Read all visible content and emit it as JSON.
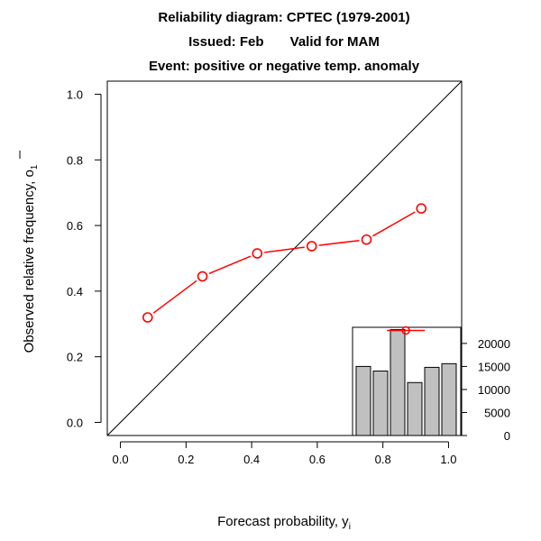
{
  "chart_data": {
    "type": "line",
    "title_lines": [
      "Reliability diagram: CPTEC (1979-2001)",
      "Issued: Feb       Valid for MAM",
      "Event: positive or negative temp. anomaly"
    ],
    "xlabel": "Forecast probability, y",
    "xlabel_sub": "i",
    "ylabel": "Observed relative frequency, o",
    "ylabel_sub": "1",
    "xlim": [
      -0.04,
      1.04
    ],
    "ylim": [
      -0.04,
      1.04
    ],
    "x_ticks": [
      "0.0",
      "0.2",
      "0.4",
      "0.6",
      "0.8",
      "1.0"
    ],
    "y_ticks": [
      "0.0",
      "0.2",
      "0.4",
      "0.6",
      "0.8",
      "1.0"
    ],
    "diagonal": [
      [
        -0.04,
        -0.04
      ],
      [
        1.04,
        1.04
      ]
    ],
    "series": [
      {
        "name": "reliability",
        "color": "#ff0000",
        "x": [
          0.083,
          0.25,
          0.417,
          0.583,
          0.75,
          0.917
        ],
        "y": [
          0.32,
          0.445,
          0.515,
          0.537,
          0.557,
          0.652
        ]
      }
    ],
    "climatology_marker": {
      "x": 0.87,
      "y": 0.28,
      "color": "#ff0000"
    },
    "inset_histogram": {
      "type": "bar",
      "categories": [
        "0.083",
        "0.25",
        "0.417",
        "0.583",
        "0.75",
        "0.917"
      ],
      "values": [
        15000,
        14000,
        23000,
        11500,
        14800,
        15600
      ],
      "ylim": [
        0,
        23500
      ],
      "y_ticks": [
        "0",
        "5000",
        "10000",
        "15000",
        "20000"
      ],
      "bar_color": "#c0c0c0"
    }
  }
}
